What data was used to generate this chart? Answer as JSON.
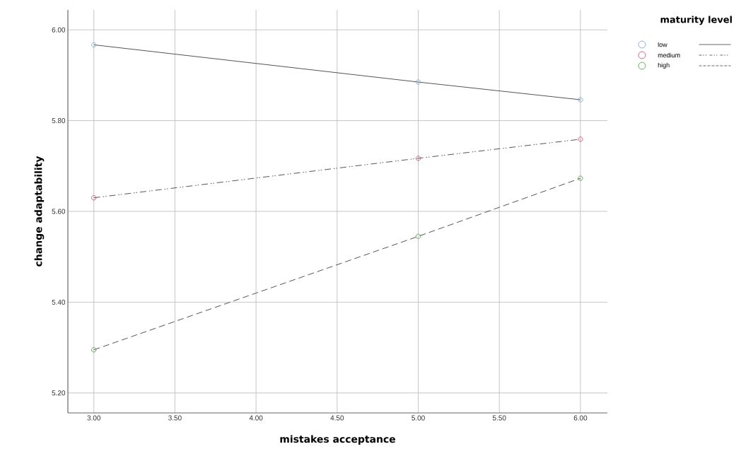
{
  "chart_data": {
    "type": "line",
    "xlabel": "mistakes acceptance",
    "ylabel": "change adaptability",
    "legend_title": "maturity level",
    "x": [
      3,
      5,
      6
    ],
    "series": [
      {
        "name": "low",
        "color": "#6fa0d8",
        "line_style": "solid",
        "values": [
          5.967,
          5.885,
          5.846
        ]
      },
      {
        "name": "medium",
        "color": "#c8416b",
        "line_style": "dashdot",
        "values": [
          5.63,
          5.717,
          5.759
        ]
      },
      {
        "name": "high",
        "color": "#4a9a3a",
        "line_style": "dashed",
        "values": [
          5.295,
          5.545,
          5.673
        ]
      }
    ],
    "xlim": [
      2.84,
      6.166
    ],
    "ylim": [
      5.156,
      6.044
    ],
    "xticks": [
      {
        "value": 3,
        "label": "3.00"
      },
      {
        "value": 3.5,
        "label": "3.50"
      },
      {
        "value": 4,
        "label": "4.00"
      },
      {
        "value": 4.5,
        "label": "4.50"
      },
      {
        "value": 5,
        "label": "5.00"
      },
      {
        "value": 5.5,
        "label": "5.50"
      },
      {
        "value": 6,
        "label": "6.00"
      }
    ],
    "yticks": [
      {
        "value": 5.2,
        "label": "5.20"
      },
      {
        "value": 5.4,
        "label": "5.40"
      },
      {
        "value": 5.6,
        "label": "5.60"
      },
      {
        "value": 5.8,
        "label": "5.80"
      },
      {
        "value": 6.0,
        "label": "6.00"
      }
    ],
    "grid": true,
    "legend": "top right",
    "marker": "circle"
  }
}
